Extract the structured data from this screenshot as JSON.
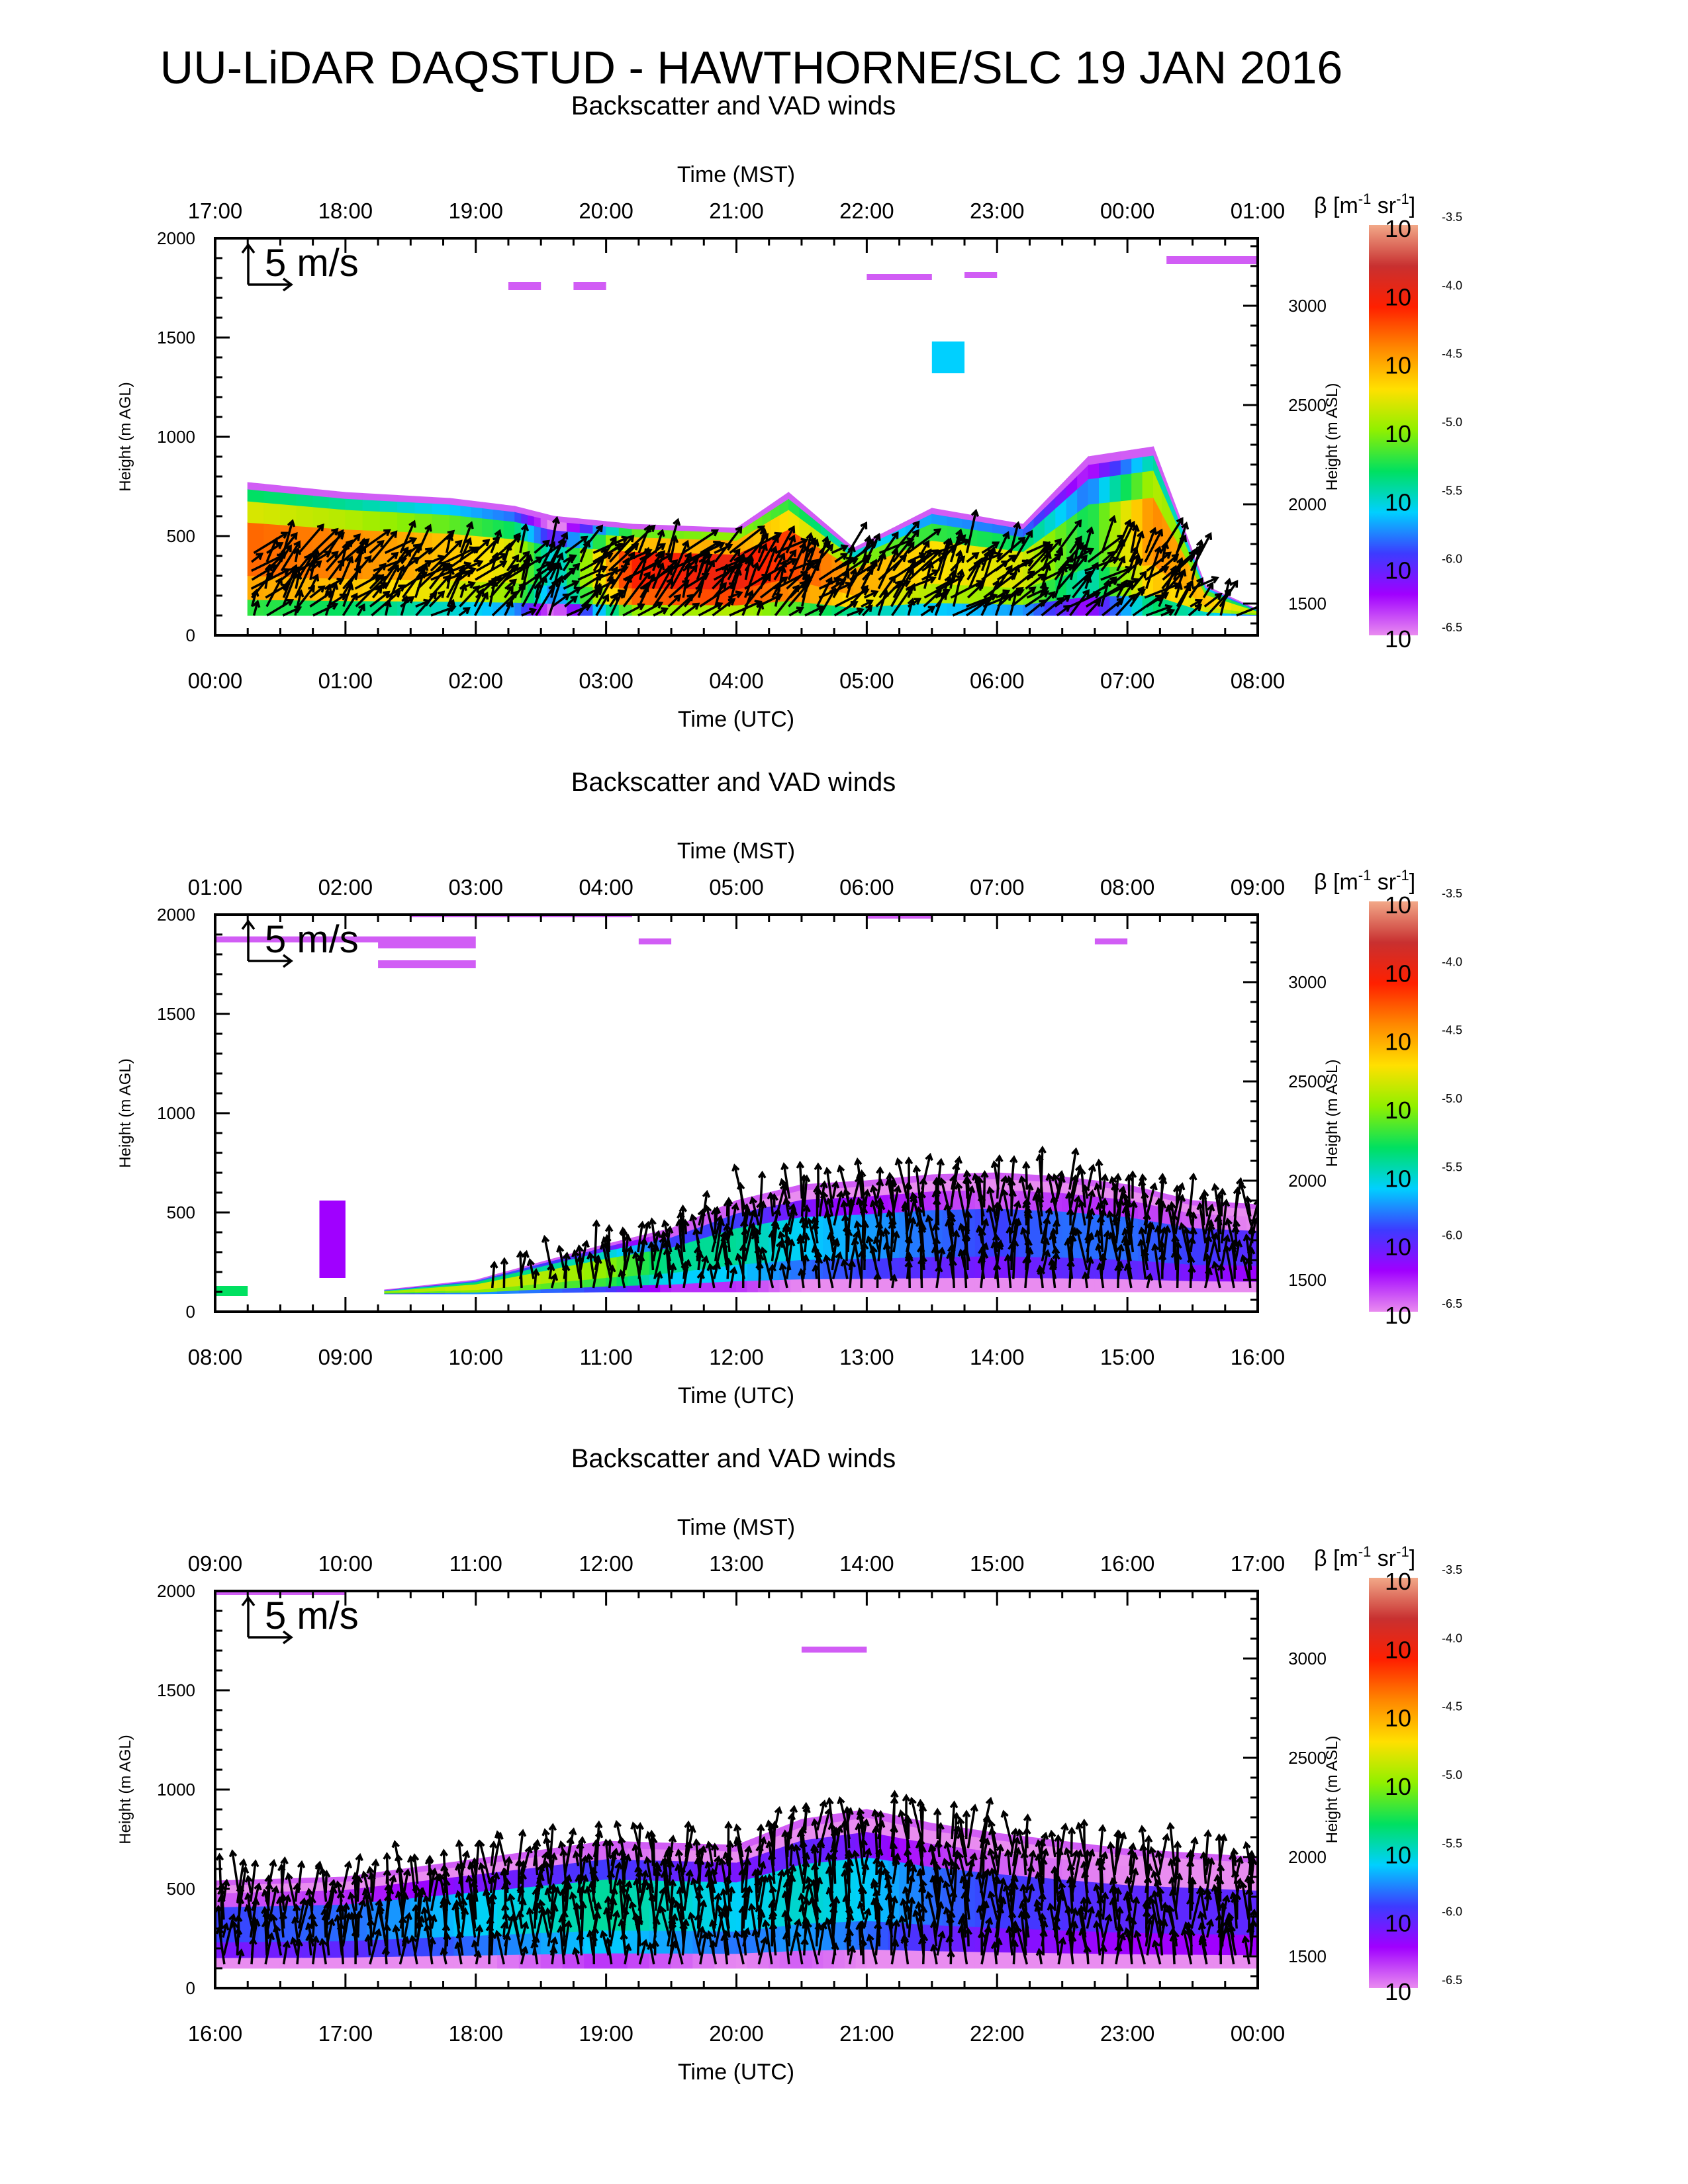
{
  "title": "UU-LiDAR DAQSTUD - HAWTHORNE/SLC 19 JAN 2016",
  "colors": {
    "background": "#ffffff",
    "axis": "#000000",
    "arrow": "#000000",
    "colorbar_stops": [
      "#e98cf0",
      "#a000ff",
      "#3c3cff",
      "#00d0ff",
      "#00e060",
      "#90f000",
      "#ffe000",
      "#ff8800",
      "#ff2000",
      "#c83030",
      "#f2a888"
    ]
  },
  "colorbar": {
    "label_symbol": "β",
    "label_unit": "[m",
    "label_exp1": "-1",
    "label_mid": " sr",
    "label_exp2": "-1",
    "label_end": "]",
    "range_log10": [
      -6.5,
      -3.5
    ],
    "ticks": [
      {
        "base": "10",
        "exp": "-3.5",
        "value": -3.5
      },
      {
        "base": "10",
        "exp": "-4.0",
        "value": -4.0
      },
      {
        "base": "10",
        "exp": "-4.5",
        "value": -4.5
      },
      {
        "base": "10",
        "exp": "-5.0",
        "value": -5.0
      },
      {
        "base": "10",
        "exp": "-5.5",
        "value": -5.5
      },
      {
        "base": "10",
        "exp": "-6.0",
        "value": -6.0
      },
      {
        "base": "10",
        "exp": "-6.5",
        "value": -6.5
      }
    ]
  },
  "chart_data": [
    {
      "type": "heatmap",
      "title": "Backscatter and VAD winds",
      "top_xlabel": "Time (MST)",
      "bottom_xlabel": "Time (UTC)",
      "ylabel": "Height (m AGL)",
      "y2label": "Height (m ASL)",
      "ylim": [
        0,
        2000
      ],
      "y2lim": [
        1340,
        3340
      ],
      "xlim_hours_utc": [
        0,
        8
      ],
      "yticks": [
        0,
        500,
        1000,
        1500,
        2000
      ],
      "y2ticks": [
        1500,
        2000,
        2500,
        3000
      ],
      "top_ticks": [
        "17:00",
        "18:00",
        "19:00",
        "20:00",
        "21:00",
        "22:00",
        "23:00",
        "00:00",
        "01:00"
      ],
      "bottom_ticks": [
        "00:00",
        "01:00",
        "02:00",
        "03:00",
        "04:00",
        "05:00",
        "06:00",
        "07:00",
        "08:00"
      ],
      "wind_scale_label": "5 m/s",
      "aerosol_layer": [
        {
          "t": 0.25,
          "bottom": 100,
          "top": 770,
          "logb": -4.3
        },
        {
          "t": 1.0,
          "bottom": 100,
          "top": 720,
          "logb": -4.4
        },
        {
          "t": 1.8,
          "bottom": 100,
          "top": 690,
          "logb": -4.6
        },
        {
          "t": 2.3,
          "bottom": 100,
          "top": 650,
          "logb": -4.8
        },
        {
          "t": 2.6,
          "bottom": 100,
          "top": 600,
          "logb": -5.6
        },
        {
          "t": 3.2,
          "bottom": 100,
          "top": 560,
          "logb": -4.1
        },
        {
          "t": 4.0,
          "bottom": 100,
          "top": 540,
          "logb": -4.0
        },
        {
          "t": 4.4,
          "bottom": 100,
          "top": 720,
          "logb": -4.2
        },
        {
          "t": 4.9,
          "bottom": 100,
          "top": 440,
          "logb": -4.5
        },
        {
          "t": 5.5,
          "bottom": 100,
          "top": 640,
          "logb": -4.7
        },
        {
          "t": 6.2,
          "bottom": 100,
          "top": 560,
          "logb": -4.8
        },
        {
          "t": 6.7,
          "bottom": 100,
          "top": 900,
          "logb": -5.3
        },
        {
          "t": 7.2,
          "bottom": 100,
          "top": 950,
          "logb": -4.4
        },
        {
          "t": 7.6,
          "bottom": 100,
          "top": 250,
          "logb": -4.6
        },
        {
          "t": 8.0,
          "bottom": 100,
          "top": 130,
          "logb": -4.9
        }
      ],
      "isolated_patches": [
        {
          "t0": 2.25,
          "t1": 2.5,
          "z0": 1740,
          "z1": 1780,
          "logb": -6.4
        },
        {
          "t0": 2.75,
          "t1": 3.0,
          "z0": 1740,
          "z1": 1780,
          "logb": -6.4
        },
        {
          "t0": 5.0,
          "t1": 5.5,
          "z0": 1790,
          "z1": 1820,
          "logb": -6.4
        },
        {
          "t0": 5.75,
          "t1": 6.0,
          "z0": 1800,
          "z1": 1830,
          "logb": -6.4
        },
        {
          "t0": 5.5,
          "t1": 5.75,
          "z0": 1320,
          "z1": 1480,
          "logb": -5.6
        },
        {
          "t0": 7.3,
          "t1": 8.0,
          "z0": 1870,
          "z1": 1910,
          "logb": -6.4
        }
      ],
      "wind_heights": [
        100,
        450
      ]
    },
    {
      "type": "heatmap",
      "title": "Backscatter and VAD winds",
      "top_xlabel": "Time (MST)",
      "bottom_xlabel": "Time (UTC)",
      "ylabel": "Height (m AGL)",
      "y2label": "Height (m ASL)",
      "ylim": [
        0,
        2000
      ],
      "y2lim": [
        1340,
        3340
      ],
      "xlim_hours_utc": [
        8,
        16
      ],
      "yticks": [
        0,
        500,
        1000,
        1500,
        2000
      ],
      "y2ticks": [
        1500,
        2000,
        2500,
        3000
      ],
      "top_ticks": [
        "01:00",
        "02:00",
        "03:00",
        "04:00",
        "05:00",
        "06:00",
        "07:00",
        "08:00",
        "09:00"
      ],
      "bottom_ticks": [
        "08:00",
        "09:00",
        "10:00",
        "11:00",
        "12:00",
        "13:00",
        "14:00",
        "15:00",
        "16:00"
      ],
      "wind_scale_label": "5 m/s",
      "aerosol_layer": [
        {
          "t": 9.3,
          "bottom": 90,
          "top": 110,
          "logb": -5.0
        },
        {
          "t": 10.0,
          "bottom": 90,
          "top": 160,
          "logb": -4.8
        },
        {
          "t": 11.0,
          "bottom": 100,
          "top": 340,
          "logb": -5.0
        },
        {
          "t": 11.5,
          "bottom": 100,
          "top": 420,
          "logb": -5.4
        },
        {
          "t": 12.0,
          "bottom": 100,
          "top": 560,
          "logb": -5.4
        },
        {
          "t": 12.5,
          "bottom": 100,
          "top": 640,
          "logb": -5.6
        },
        {
          "t": 13.0,
          "bottom": 100,
          "top": 660,
          "logb": -5.7
        },
        {
          "t": 13.5,
          "bottom": 100,
          "top": 690,
          "logb": -5.8
        },
        {
          "t": 14.0,
          "bottom": 100,
          "top": 700,
          "logb": -5.9
        },
        {
          "t": 14.5,
          "bottom": 100,
          "top": 680,
          "logb": -5.8
        },
        {
          "t": 15.0,
          "bottom": 100,
          "top": 640,
          "logb": -5.8
        },
        {
          "t": 15.5,
          "bottom": 100,
          "top": 560,
          "logb": -5.9
        },
        {
          "t": 16.0,
          "bottom": 100,
          "top": 540,
          "logb": -6.0
        }
      ],
      "isolated_patches": [
        {
          "t0": 8.0,
          "t1": 8.25,
          "z0": 80,
          "z1": 130,
          "logb": -5.3
        },
        {
          "t0": 8.8,
          "t1": 9.0,
          "z0": 170,
          "z1": 560,
          "logb": -6.2
        },
        {
          "t0": 9.25,
          "t1": 10.0,
          "z0": 1830,
          "z1": 1890,
          "logb": -6.4
        },
        {
          "t0": 9.25,
          "t1": 10.0,
          "z0": 1730,
          "z1": 1770,
          "logb": -6.4
        },
        {
          "t0": 8.0,
          "t1": 9.5,
          "z0": 1860,
          "z1": 1890,
          "logb": -6.4
        },
        {
          "t0": 9.5,
          "t1": 11.2,
          "z0": 1990,
          "z1": 2000,
          "logb": -6.4
        },
        {
          "t0": 11.25,
          "t1": 11.5,
          "z0": 1850,
          "z1": 1880,
          "logb": -6.4
        },
        {
          "t0": 13.0,
          "t1": 13.5,
          "z0": 1980,
          "z1": 2000,
          "logb": -6.4
        },
        {
          "t0": 14.75,
          "t1": 15.0,
          "z0": 1850,
          "z1": 1880,
          "logb": -6.4
        }
      ],
      "wind_heights": [
        120,
        650
      ]
    },
    {
      "type": "heatmap",
      "title": "Backscatter and VAD winds",
      "top_xlabel": "Time (MST)",
      "bottom_xlabel": "Time (UTC)",
      "ylabel": "Height (m AGL)",
      "y2label": "Height (m ASL)",
      "ylim": [
        0,
        2000
      ],
      "y2lim": [
        1340,
        3340
      ],
      "xlim_hours_utc": [
        16,
        24
      ],
      "yticks": [
        0,
        500,
        1000,
        1500,
        2000
      ],
      "y2ticks": [
        1500,
        2000,
        2500,
        3000
      ],
      "top_ticks": [
        "09:00",
        "10:00",
        "11:00",
        "12:00",
        "13:00",
        "14:00",
        "15:00",
        "16:00",
        "17:00"
      ],
      "bottom_ticks": [
        "16:00",
        "17:00",
        "18:00",
        "19:00",
        "20:00",
        "21:00",
        "22:00",
        "23:00",
        "00:00"
      ],
      "wind_scale_label": "5 m/s",
      "aerosol_layer": [
        {
          "t": 16.0,
          "bottom": 100,
          "top": 540,
          "logb": -5.9
        },
        {
          "t": 17.0,
          "bottom": 100,
          "top": 560,
          "logb": -5.8
        },
        {
          "t": 18.0,
          "bottom": 100,
          "top": 650,
          "logb": -5.6
        },
        {
          "t": 19.0,
          "bottom": 100,
          "top": 740,
          "logb": -5.4
        },
        {
          "t": 20.0,
          "bottom": 100,
          "top": 720,
          "logb": -5.6
        },
        {
          "t": 20.5,
          "bottom": 100,
          "top": 850,
          "logb": -5.5
        },
        {
          "t": 21.0,
          "bottom": 100,
          "top": 900,
          "logb": -5.6
        },
        {
          "t": 21.5,
          "bottom": 100,
          "top": 830,
          "logb": -5.8
        },
        {
          "t": 22.0,
          "bottom": 100,
          "top": 780,
          "logb": -5.9
        },
        {
          "t": 23.0,
          "bottom": 100,
          "top": 700,
          "logb": -6.0
        },
        {
          "t": 24.0,
          "bottom": 100,
          "top": 660,
          "logb": -6.0
        }
      ],
      "isolated_patches": [
        {
          "t0": 16.0,
          "t1": 17.0,
          "z0": 1980,
          "z1": 2000,
          "logb": -6.4
        },
        {
          "t0": 20.5,
          "t1": 21.0,
          "z0": 1690,
          "z1": 1720,
          "logb": -6.4
        }
      ],
      "wind_heights": [
        120,
        800
      ]
    }
  ]
}
